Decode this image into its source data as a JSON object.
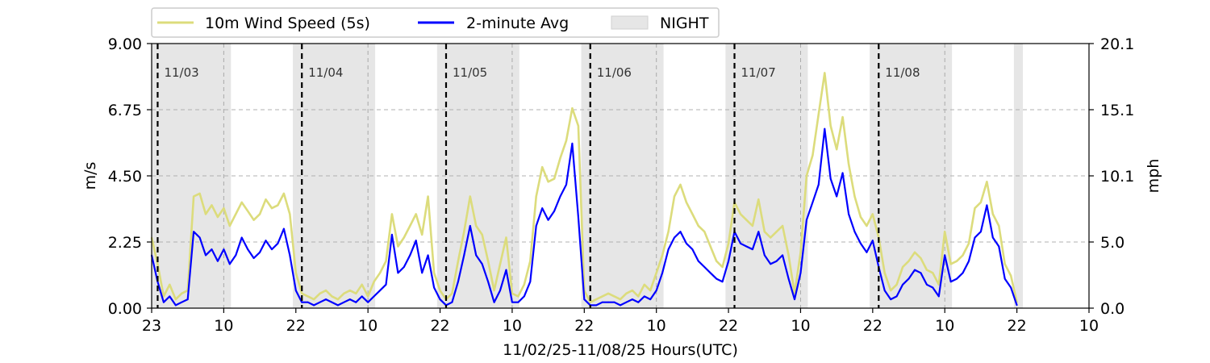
{
  "chart_data": {
    "type": "line",
    "legend": {
      "placement": "top-left-above",
      "entries": [
        {
          "label": "10m Wind Speed (5s)",
          "color": "#dcdc7c",
          "kind": "line"
        },
        {
          "label": "2-minute Avg",
          "color": "#0000ff",
          "kind": "line"
        },
        {
          "label": "NIGHT",
          "color": "#e6e6e6",
          "kind": "patch"
        }
      ]
    },
    "xlabel": "11/02/25-11/08/25  Hours(UTC)",
    "ylabel_left": "m/s",
    "ylabel_right": "mph",
    "xlim_hours": [
      0,
      156
    ],
    "xticks": [
      {
        "hour": 0,
        "label": "23"
      },
      {
        "hour": 12,
        "label": "10"
      },
      {
        "hour": 24,
        "label": "22"
      },
      {
        "hour": 36,
        "label": "10"
      },
      {
        "hour": 48,
        "label": "22"
      },
      {
        "hour": 60,
        "label": "10"
      },
      {
        "hour": 72,
        "label": "22"
      },
      {
        "hour": 84,
        "label": "10"
      },
      {
        "hour": 96,
        "label": "22"
      },
      {
        "hour": 108,
        "label": "10"
      },
      {
        "hour": 120,
        "label": "22"
      },
      {
        "hour": 132,
        "label": "10"
      },
      {
        "hour": 144,
        "label": "22"
      },
      {
        "hour": 156,
        "label": "10"
      }
    ],
    "ylim_left": [
      0,
      9.0
    ],
    "yticks_left": [
      "0.00",
      "2.25",
      "4.50",
      "6.75",
      "9.00"
    ],
    "ylim_right": [
      0,
      20.1
    ],
    "yticks_right": [
      "0.0",
      "5.0",
      "10.1",
      "15.1",
      "20.1"
    ],
    "grid": "horizontal dashed at y ticks",
    "night_periods_hours": [
      [
        0,
        13.2
      ],
      [
        23.5,
        37.2
      ],
      [
        47.5,
        61.2
      ],
      [
        71.5,
        85.2
      ],
      [
        95.5,
        109.2
      ],
      [
        119.5,
        133.2
      ],
      [
        143.5,
        145
      ]
    ],
    "night_period_end_marks_hours": [
      12,
      36,
      60,
      84,
      108,
      132
    ],
    "day_boundaries": [
      {
        "hour": 1,
        "label": "11/03"
      },
      {
        "hour": 25,
        "label": "11/04"
      },
      {
        "hour": 49,
        "label": "11/05"
      },
      {
        "hour": 73,
        "label": "11/06"
      },
      {
        "hour": 97,
        "label": "11/07"
      },
      {
        "hour": 121,
        "label": "11/08"
      }
    ],
    "series": [
      {
        "name": "10m Wind Speed (5s)",
        "color": "#dcdc7c",
        "x_hours": [
          0,
          1,
          2,
          3,
          4,
          5,
          6,
          7,
          8,
          9,
          10,
          11,
          12,
          13,
          14,
          15,
          16,
          17,
          18,
          19,
          20,
          21,
          22,
          23,
          24,
          25,
          26,
          27,
          28,
          29,
          30,
          31,
          32,
          33,
          34,
          35,
          36,
          37,
          38,
          39,
          40,
          41,
          42,
          43,
          44,
          45,
          46,
          47,
          48,
          49,
          50,
          51,
          52,
          53,
          54,
          55,
          56,
          57,
          58,
          59,
          60,
          61,
          62,
          63,
          64,
          65,
          66,
          67,
          68,
          69,
          70,
          71,
          72,
          73,
          74,
          75,
          76,
          77,
          78,
          79,
          80,
          81,
          82,
          83,
          84,
          85,
          86,
          87,
          88,
          89,
          90,
          91,
          92,
          93,
          94,
          95,
          96,
          97,
          98,
          99,
          100,
          101,
          102,
          103,
          104,
          105,
          106,
          107,
          108,
          109,
          110,
          111,
          112,
          113,
          114,
          115,
          116,
          117,
          118,
          119,
          120,
          121,
          122,
          123,
          124,
          125,
          126,
          127,
          128,
          129,
          130,
          131,
          132,
          133,
          134,
          135,
          136,
          137,
          138,
          139,
          140,
          141,
          142,
          143,
          144
        ],
        "values": [
          2.4,
          1.5,
          0.4,
          0.8,
          0.3,
          0.5,
          0.6,
          3.8,
          3.9,
          3.2,
          3.5,
          3.1,
          3.4,
          2.8,
          3.2,
          3.6,
          3.3,
          3.0,
          3.2,
          3.7,
          3.4,
          3.5,
          3.9,
          3.2,
          1.2,
          0.5,
          0.4,
          0.3,
          0.5,
          0.6,
          0.4,
          0.3,
          0.5,
          0.6,
          0.5,
          0.8,
          0.4,
          0.9,
          1.2,
          1.6,
          3.2,
          2.1,
          2.4,
          2.8,
          3.2,
          2.5,
          3.8,
          1.2,
          0.6,
          0.3,
          0.5,
          1.6,
          2.6,
          3.8,
          2.8,
          2.5,
          1.6,
          0.6,
          1.5,
          2.4,
          0.5,
          0.4,
          0.8,
          1.6,
          3.8,
          4.8,
          4.3,
          4.4,
          5.1,
          5.7,
          6.8,
          6.2,
          0.6,
          0.2,
          0.3,
          0.4,
          0.5,
          0.4,
          0.3,
          0.5,
          0.6,
          0.4,
          0.8,
          0.6,
          1.2,
          1.8,
          2.6,
          3.8,
          4.2,
          3.6,
          3.2,
          2.8,
          2.6,
          2.1,
          1.6,
          1.4,
          2.2,
          3.6,
          3.2,
          3.0,
          2.8,
          3.7,
          2.6,
          2.4,
          2.6,
          2.8,
          1.8,
          0.5,
          1.9,
          4.5,
          5.2,
          6.6,
          8.0,
          6.2,
          5.4,
          6.5,
          4.9,
          3.8,
          3.1,
          2.8,
          3.2,
          2.4,
          1.2,
          0.6,
          0.8,
          1.4,
          1.6,
          1.9,
          1.7,
          1.3,
          1.2,
          0.8,
          2.6,
          1.5,
          1.6,
          1.8,
          2.2,
          3.4,
          3.6,
          4.3,
          3.2,
          2.8,
          1.5,
          1.1,
          0.2
        ]
      },
      {
        "name": "2-minute Avg",
        "color": "#0000ff",
        "x_hours": [
          0,
          1,
          2,
          3,
          4,
          5,
          6,
          7,
          8,
          9,
          10,
          11,
          12,
          13,
          14,
          15,
          16,
          17,
          18,
          19,
          20,
          21,
          22,
          23,
          24,
          25,
          26,
          27,
          28,
          29,
          30,
          31,
          32,
          33,
          34,
          35,
          36,
          37,
          38,
          39,
          40,
          41,
          42,
          43,
          44,
          45,
          46,
          47,
          48,
          49,
          50,
          51,
          52,
          53,
          54,
          55,
          56,
          57,
          58,
          59,
          60,
          61,
          62,
          63,
          64,
          65,
          66,
          67,
          68,
          69,
          70,
          71,
          72,
          73,
          74,
          75,
          76,
          77,
          78,
          79,
          80,
          81,
          82,
          83,
          84,
          85,
          86,
          87,
          88,
          89,
          90,
          91,
          92,
          93,
          94,
          95,
          96,
          97,
          98,
          99,
          100,
          101,
          102,
          103,
          104,
          105,
          106,
          107,
          108,
          109,
          110,
          111,
          112,
          113,
          114,
          115,
          116,
          117,
          118,
          119,
          120,
          121,
          122,
          123,
          124,
          125,
          126,
          127,
          128,
          129,
          130,
          131,
          132,
          133,
          134,
          135,
          136,
          137,
          138,
          139,
          140,
          141,
          142,
          143,
          144
        ],
        "values": [
          1.8,
          0.9,
          0.2,
          0.4,
          0.1,
          0.2,
          0.3,
          2.6,
          2.4,
          1.8,
          2.0,
          1.6,
          2.0,
          1.5,
          1.8,
          2.4,
          2.0,
          1.7,
          1.9,
          2.3,
          2.0,
          2.2,
          2.7,
          1.8,
          0.6,
          0.2,
          0.2,
          0.1,
          0.2,
          0.3,
          0.2,
          0.1,
          0.2,
          0.3,
          0.2,
          0.4,
          0.2,
          0.4,
          0.6,
          0.8,
          2.5,
          1.2,
          1.4,
          1.8,
          2.3,
          1.2,
          1.8,
          0.7,
          0.3,
          0.1,
          0.2,
          0.9,
          1.8,
          2.8,
          1.8,
          1.5,
          0.9,
          0.2,
          0.6,
          1.3,
          0.2,
          0.2,
          0.4,
          0.9,
          2.8,
          3.4,
          3.0,
          3.3,
          3.8,
          4.2,
          5.6,
          3.1,
          0.3,
          0.1,
          0.1,
          0.2,
          0.2,
          0.2,
          0.1,
          0.2,
          0.3,
          0.2,
          0.4,
          0.3,
          0.6,
          1.2,
          2.0,
          2.4,
          2.6,
          2.2,
          2.0,
          1.6,
          1.4,
          1.2,
          1.0,
          0.9,
          1.6,
          2.6,
          2.2,
          2.1,
          2.0,
          2.6,
          1.8,
          1.5,
          1.6,
          1.8,
          1.0,
          0.3,
          1.2,
          3.0,
          3.6,
          4.2,
          6.1,
          4.4,
          3.8,
          4.6,
          3.2,
          2.6,
          2.2,
          1.9,
          2.3,
          1.4,
          0.6,
          0.3,
          0.4,
          0.8,
          1.0,
          1.3,
          1.2,
          0.8,
          0.7,
          0.4,
          1.8,
          0.9,
          1.0,
          1.2,
          1.6,
          2.4,
          2.6,
          3.5,
          2.4,
          2.1,
          1.0,
          0.7,
          0.1
        ]
      }
    ]
  }
}
